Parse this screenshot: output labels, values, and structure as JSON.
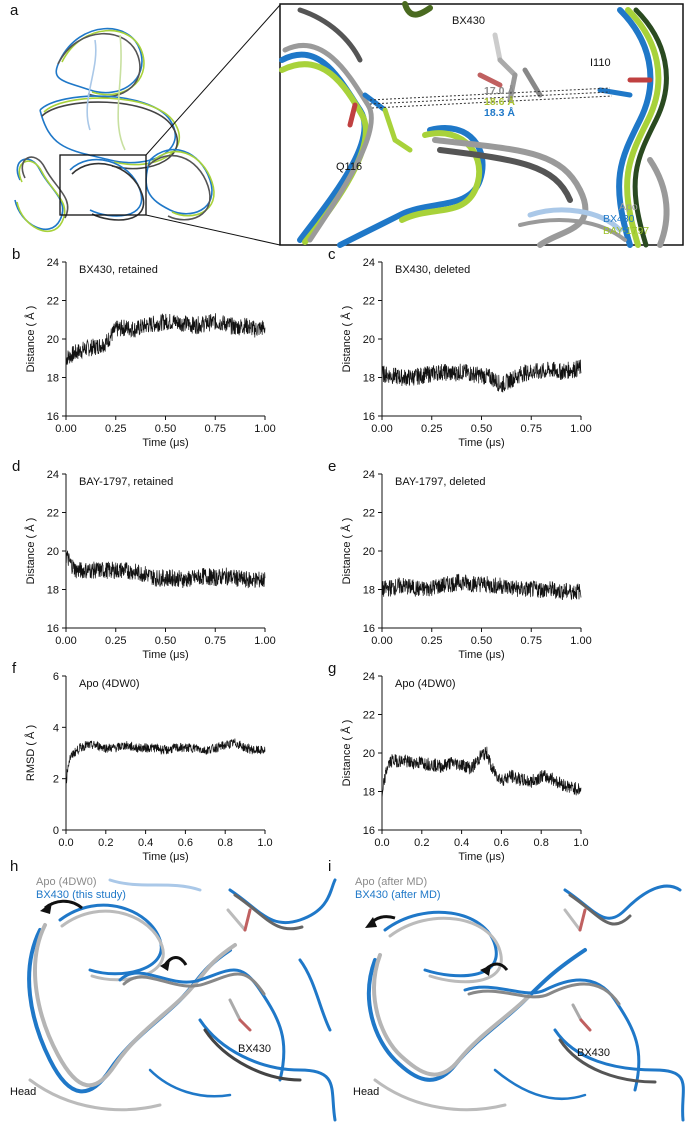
{
  "panel_labels": {
    "a": "a",
    "b": "b",
    "c": "c",
    "d": "d",
    "e": "e",
    "f": "f",
    "g": "g",
    "h": "h",
    "i": "i"
  },
  "panel_a": {
    "ligand": "BX430",
    "residue1": "I110",
    "residue2": "Q116",
    "dist_apo": "17.0 Å",
    "dist_bay": "18.6 Å",
    "dist_bx": "18.3 Å",
    "legend": [
      "Apo",
      "BX430",
      "BAY-1797"
    ],
    "colors": {
      "apo": "#9a9a9a",
      "bx430": "#1f78c8",
      "bay": "#a8d23a"
    }
  },
  "panel_h": {
    "legend1": "Apo (4DW0)",
    "legend2": "BX430 (this study)",
    "ligand": "BX430",
    "region": "Head"
  },
  "panel_i": {
    "legend1": "Apo (after MD)",
    "legend2": "BX430 (after MD)",
    "ligand": "BX430",
    "region": "Head"
  },
  "chart_data": [
    {
      "id": "b",
      "type": "line",
      "title": "BX430, retained",
      "xlabel": "Time (μs)",
      "ylabel": "Distance ( Å )",
      "xlim": [
        0,
        1
      ],
      "ylim": [
        16,
        24
      ],
      "xticks": [
        0,
        0.25,
        0.5,
        0.75,
        1
      ],
      "xtick_labels": [
        "0.00",
        "0.25",
        "0.50",
        "0.75",
        "1.00"
      ],
      "yticks": [
        16,
        18,
        20,
        22,
        24
      ],
      "ytick_labels": [
        "16",
        "18",
        "20",
        "22",
        "24"
      ],
      "x": [
        0,
        0.05,
        0.1,
        0.15,
        0.2,
        0.25,
        0.3,
        0.35,
        0.4,
        0.45,
        0.5,
        0.55,
        0.6,
        0.65,
        0.7,
        0.75,
        0.8,
        0.85,
        0.9,
        0.95,
        1.0
      ],
      "y": [
        19.0,
        19.3,
        19.5,
        19.6,
        19.8,
        20.5,
        20.6,
        20.5,
        20.7,
        20.8,
        20.9,
        20.9,
        20.8,
        20.7,
        20.8,
        20.9,
        20.8,
        20.6,
        20.7,
        20.5,
        20.6
      ],
      "noise": 0.45
    },
    {
      "id": "c",
      "type": "line",
      "title": "BX430, deleted",
      "xlabel": "Time (μs)",
      "ylabel": "Distance ( Å )",
      "xlim": [
        0,
        1
      ],
      "ylim": [
        16,
        24
      ],
      "xticks": [
        0,
        0.25,
        0.5,
        0.75,
        1
      ],
      "xtick_labels": [
        "0.00",
        "0.25",
        "0.50",
        "0.75",
        "1.00"
      ],
      "yticks": [
        16,
        18,
        20,
        22,
        24
      ],
      "ytick_labels": [
        "16",
        "18",
        "20",
        "22",
        "24"
      ],
      "x": [
        0,
        0.05,
        0.1,
        0.15,
        0.2,
        0.25,
        0.3,
        0.35,
        0.4,
        0.45,
        0.5,
        0.55,
        0.6,
        0.65,
        0.7,
        0.75,
        0.8,
        0.85,
        0.9,
        0.95,
        1.0
      ],
      "y": [
        18.2,
        18.1,
        18.0,
        18.0,
        18.1,
        18.2,
        18.3,
        18.2,
        18.3,
        18.2,
        18.1,
        18.0,
        17.6,
        17.9,
        18.2,
        18.3,
        18.3,
        18.4,
        18.3,
        18.4,
        18.5
      ],
      "noise": 0.45
    },
    {
      "id": "d",
      "type": "line",
      "title": "BAY-1797, retained",
      "xlabel": "Time (μs)",
      "ylabel": "Distance ( Å )",
      "xlim": [
        0,
        1
      ],
      "ylim": [
        16,
        24
      ],
      "xticks": [
        0,
        0.25,
        0.5,
        0.75,
        1
      ],
      "xtick_labels": [
        "0.00",
        "0.25",
        "0.50",
        "0.75",
        "1.00"
      ],
      "yticks": [
        16,
        18,
        20,
        22,
        24
      ],
      "ytick_labels": [
        "16",
        "18",
        "20",
        "22",
        "24"
      ],
      "x": [
        0,
        0.02,
        0.05,
        0.1,
        0.15,
        0.2,
        0.25,
        0.3,
        0.35,
        0.4,
        0.45,
        0.5,
        0.55,
        0.6,
        0.65,
        0.7,
        0.75,
        0.8,
        0.85,
        0.9,
        0.95,
        1.0
      ],
      "y": [
        19.8,
        19.4,
        19.0,
        19.0,
        19.0,
        19.0,
        19.0,
        19.0,
        18.9,
        18.8,
        18.6,
        18.6,
        18.6,
        18.5,
        18.6,
        18.7,
        18.6,
        18.7,
        18.6,
        18.5,
        18.5,
        18.5
      ],
      "noise": 0.45
    },
    {
      "id": "e",
      "type": "line",
      "title": "BAY-1797, deleted",
      "xlabel": "Time (μs)",
      "ylabel": "Distance ( Å )",
      "xlim": [
        0,
        1
      ],
      "ylim": [
        16,
        24
      ],
      "xticks": [
        0,
        0.25,
        0.5,
        0.75,
        1
      ],
      "xtick_labels": [
        "0.00",
        "0.25",
        "0.50",
        "0.75",
        "1.00"
      ],
      "yticks": [
        16,
        18,
        20,
        22,
        24
      ],
      "ytick_labels": [
        "16",
        "18",
        "20",
        "22",
        "24"
      ],
      "x": [
        0,
        0.05,
        0.1,
        0.15,
        0.2,
        0.25,
        0.3,
        0.35,
        0.4,
        0.45,
        0.5,
        0.55,
        0.6,
        0.65,
        0.7,
        0.75,
        0.8,
        0.85,
        0.9,
        0.95,
        1.0
      ],
      "y": [
        18.0,
        18.1,
        18.2,
        18.1,
        18.0,
        18.1,
        18.2,
        18.3,
        18.4,
        18.3,
        18.3,
        18.2,
        18.2,
        18.1,
        18.0,
        18.0,
        18.0,
        18.0,
        17.9,
        17.9,
        17.9
      ],
      "noise": 0.45
    },
    {
      "id": "f",
      "type": "line",
      "title": "Apo (4DW0)",
      "xlabel": "Time (μs)",
      "ylabel": "RMSD ( Å )",
      "xlim": [
        0,
        1
      ],
      "ylim": [
        0,
        6
      ],
      "xticks": [
        0,
        0.2,
        0.4,
        0.6,
        0.8,
        1
      ],
      "xtick_labels": [
        "0.0",
        "0.2",
        "0.4",
        "0.6",
        "0.8",
        "1.0"
      ],
      "yticks": [
        0,
        2,
        4,
        6
      ],
      "ytick_labels": [
        "0",
        "2",
        "4",
        "6"
      ],
      "x": [
        0,
        0.01,
        0.02,
        0.04,
        0.07,
        0.1,
        0.15,
        0.2,
        0.25,
        0.3,
        0.35,
        0.4,
        0.45,
        0.5,
        0.55,
        0.6,
        0.65,
        0.7,
        0.75,
        0.8,
        0.85,
        0.9,
        0.95,
        1.0
      ],
      "y": [
        1.8,
        2.5,
        2.8,
        3.0,
        3.2,
        3.3,
        3.3,
        3.2,
        3.2,
        3.3,
        3.2,
        3.2,
        3.2,
        3.1,
        3.2,
        3.2,
        3.2,
        3.1,
        3.2,
        3.3,
        3.4,
        3.2,
        3.1,
        3.1
      ],
      "noise": 0.18
    },
    {
      "id": "g",
      "type": "line",
      "title": "Apo (4DW0)",
      "xlabel": "Time (μs)",
      "ylabel": "Distance ( Å )",
      "xlim": [
        0,
        1
      ],
      "ylim": [
        16,
        24
      ],
      "xticks": [
        0,
        0.2,
        0.4,
        0.6,
        0.8,
        1
      ],
      "xtick_labels": [
        "0.0",
        "0.2",
        "0.4",
        "0.6",
        "0.8",
        "1.0"
      ],
      "yticks": [
        16,
        18,
        20,
        22,
        24
      ],
      "ytick_labels": [
        "16",
        "18",
        "20",
        "22",
        "24"
      ],
      "x": [
        0,
        0.01,
        0.03,
        0.05,
        0.1,
        0.15,
        0.2,
        0.25,
        0.3,
        0.35,
        0.4,
        0.45,
        0.5,
        0.53,
        0.55,
        0.6,
        0.65,
        0.7,
        0.75,
        0.8,
        0.85,
        0.9,
        0.95,
        1.0
      ],
      "y": [
        17.5,
        18.5,
        19.4,
        19.6,
        19.6,
        19.5,
        19.5,
        19.4,
        19.3,
        19.5,
        19.4,
        19.2,
        19.9,
        20.0,
        19.2,
        18.6,
        18.8,
        18.6,
        18.5,
        18.8,
        18.7,
        18.4,
        18.2,
        18.1
      ],
      "noise": 0.35
    }
  ]
}
